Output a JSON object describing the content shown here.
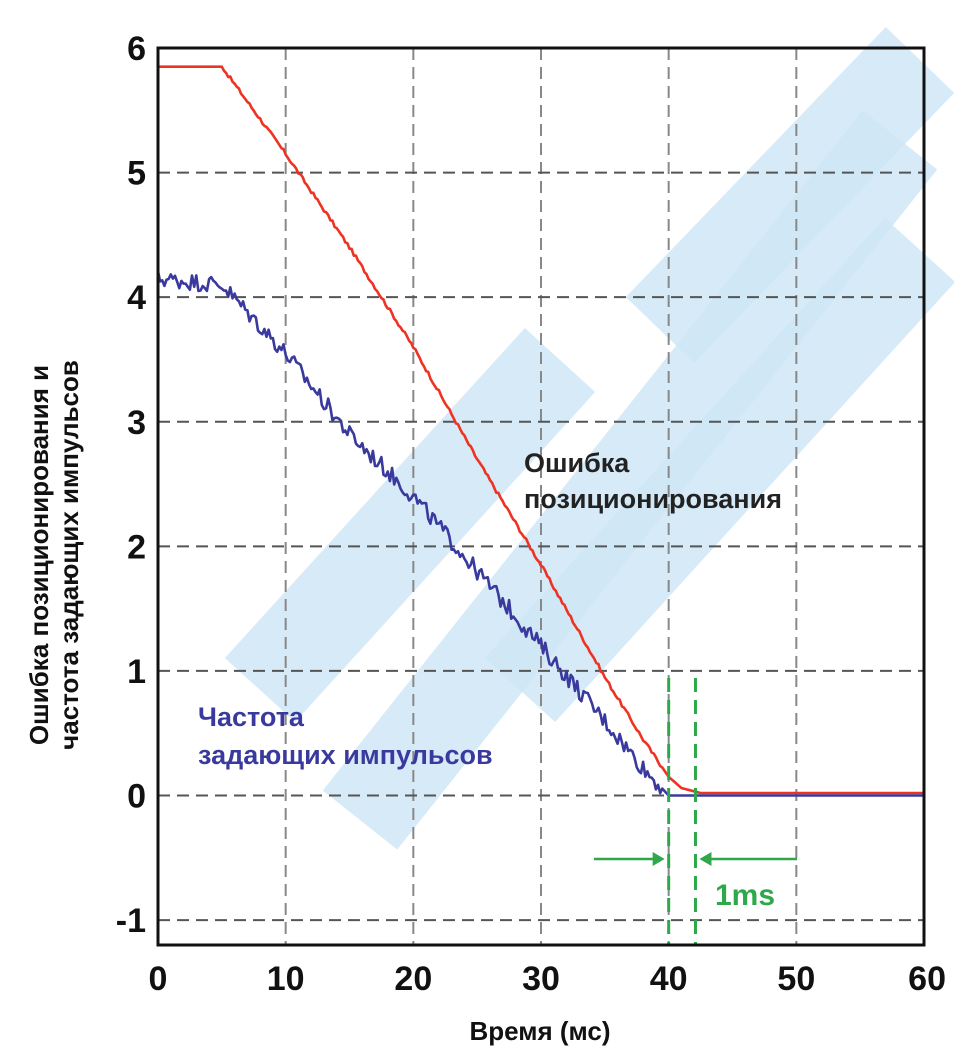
{
  "chart_data": {
    "type": "line",
    "title": "",
    "xlabel": "Время (мс)",
    "ylabel_lines": [
      "Ошибка позиционирования и",
      "частота задающих импульсов"
    ],
    "xlim": [
      0,
      60
    ],
    "ylim": [
      -1.2,
      6
    ],
    "x_ticks": [
      {
        "value": 0,
        "label": "0"
      },
      {
        "value": 10,
        "label": "10"
      },
      {
        "value": 20,
        "label": "20"
      },
      {
        "value": 30,
        "label": "30"
      },
      {
        "value": 40,
        "label": "40"
      },
      {
        "value": 50,
        "label": "50"
      },
      {
        "value": 60,
        "label": "60"
      }
    ],
    "y_ticks": [
      {
        "value": 6,
        "label": "6"
      },
      {
        "value": 5,
        "label": "5"
      },
      {
        "value": 4,
        "label": "4"
      },
      {
        "value": 3,
        "label": "3"
      },
      {
        "value": 2,
        "label": "2"
      },
      {
        "value": 1,
        "label": "1"
      },
      {
        "value": 0,
        "label": "0"
      },
      {
        "value": -1,
        "label": "-1"
      }
    ],
    "grid": true,
    "series": [
      {
        "name": "Ошибка позиционирования",
        "color": "#ee3322",
        "x": [
          0,
          5,
          10,
          15,
          20,
          25,
          30,
          35,
          38,
          40,
          41,
          42.5,
          45,
          50,
          55,
          60
        ],
        "y": [
          5.85,
          5.85,
          5.15,
          4.4,
          3.6,
          2.7,
          1.85,
          0.95,
          0.45,
          0.15,
          0.06,
          0.02,
          0.02,
          0.02,
          0.02,
          0.02
        ]
      },
      {
        "name": "Частота задающих импульсов",
        "color": "#3a3a9e",
        "x": [
          0,
          5,
          10,
          15,
          20,
          25,
          30,
          35,
          38,
          40,
          45,
          50,
          55,
          60
        ],
        "y": [
          4.15,
          4.1,
          3.55,
          2.9,
          2.4,
          1.8,
          1.2,
          0.6,
          0.22,
          0.0,
          0.0,
          0.0,
          0.0,
          0.0
        ]
      }
    ],
    "annotations": {
      "error_label_lines": [
        "Ошибка",
        "позиционирования"
      ],
      "frequency_label_lines": [
        "Частота",
        "задающих импульсов"
      ],
      "interval_label": "1ms",
      "interval_x": [
        40,
        42.1
      ],
      "interval_color": "#2ea84a"
    },
    "watermark_color": "#cfe7f6"
  }
}
